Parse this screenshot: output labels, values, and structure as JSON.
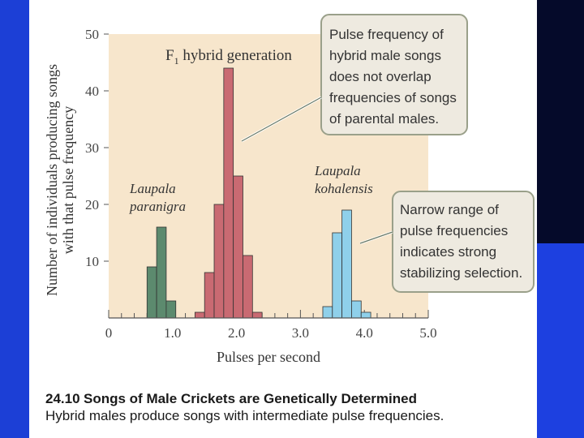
{
  "figure": {
    "number": "24.10",
    "title": "Songs of Male Crickets are Genetically Determined",
    "subtitle": "Hybrid males produce songs with intermediate pulse frequencies."
  },
  "chart_data": {
    "type": "bar",
    "title": "F1 hybrid generation",
    "xlabel": "Pulses per second",
    "ylabel": "Number of individuals producing songs with that pulse frequency",
    "xlim": [
      0,
      5.0
    ],
    "ylim": [
      0,
      50
    ],
    "xticks": [
      "0",
      "1.0",
      "2.0",
      "3.0",
      "4.0",
      "5.0"
    ],
    "yticks": [
      "10",
      "20",
      "30",
      "40",
      "50"
    ],
    "bin_width": 0.15,
    "series": [
      {
        "name": "Laupala paranigra",
        "color": "#5c8a6e",
        "x": [
          0.6,
          0.75,
          0.9
        ],
        "values": [
          9,
          16,
          3
        ]
      },
      {
        "name": "F1 hybrid generation",
        "color": "#c96a72",
        "x": [
          1.35,
          1.5,
          1.65,
          1.8,
          1.95,
          2.1,
          2.25,
          2.4
        ],
        "values": [
          1,
          8,
          20,
          44,
          25,
          11,
          1,
          0
        ]
      },
      {
        "name": "Laupala kohalensis",
        "color": "#8fd0ea",
        "x": [
          3.35,
          3.5,
          3.65,
          3.8,
          3.95
        ],
        "values": [
          2,
          15,
          19,
          3,
          1
        ]
      }
    ],
    "annotations": [
      "Pulse frequency of hybrid male songs does not overlap frequencies of songs of parental males.",
      "Narrow range of pulse frequencies indicates strong stabilizing selection."
    ],
    "grid": false
  },
  "labels": {
    "paranigra_line1": "Laupala",
    "paranigra_line2": "paranigra",
    "kohalensis_line1": "Laupala",
    "kohalensis_line2": "kohalensis",
    "hybrid_f": "F",
    "hybrid_sub": "1",
    "hybrid_rest": " hybrid generation",
    "ylabel_line1": "Number of individuals producing songs",
    "ylabel_line2": "with that pulse frequency",
    "callout1": [
      "Pulse frequency of",
      "hybrid male songs",
      "does not overlap",
      "frequencies of songs",
      "of parental males."
    ],
    "callout2": [
      "Narrow range of",
      "pulse frequencies",
      "indicates strong",
      "stabilizing selection."
    ]
  }
}
